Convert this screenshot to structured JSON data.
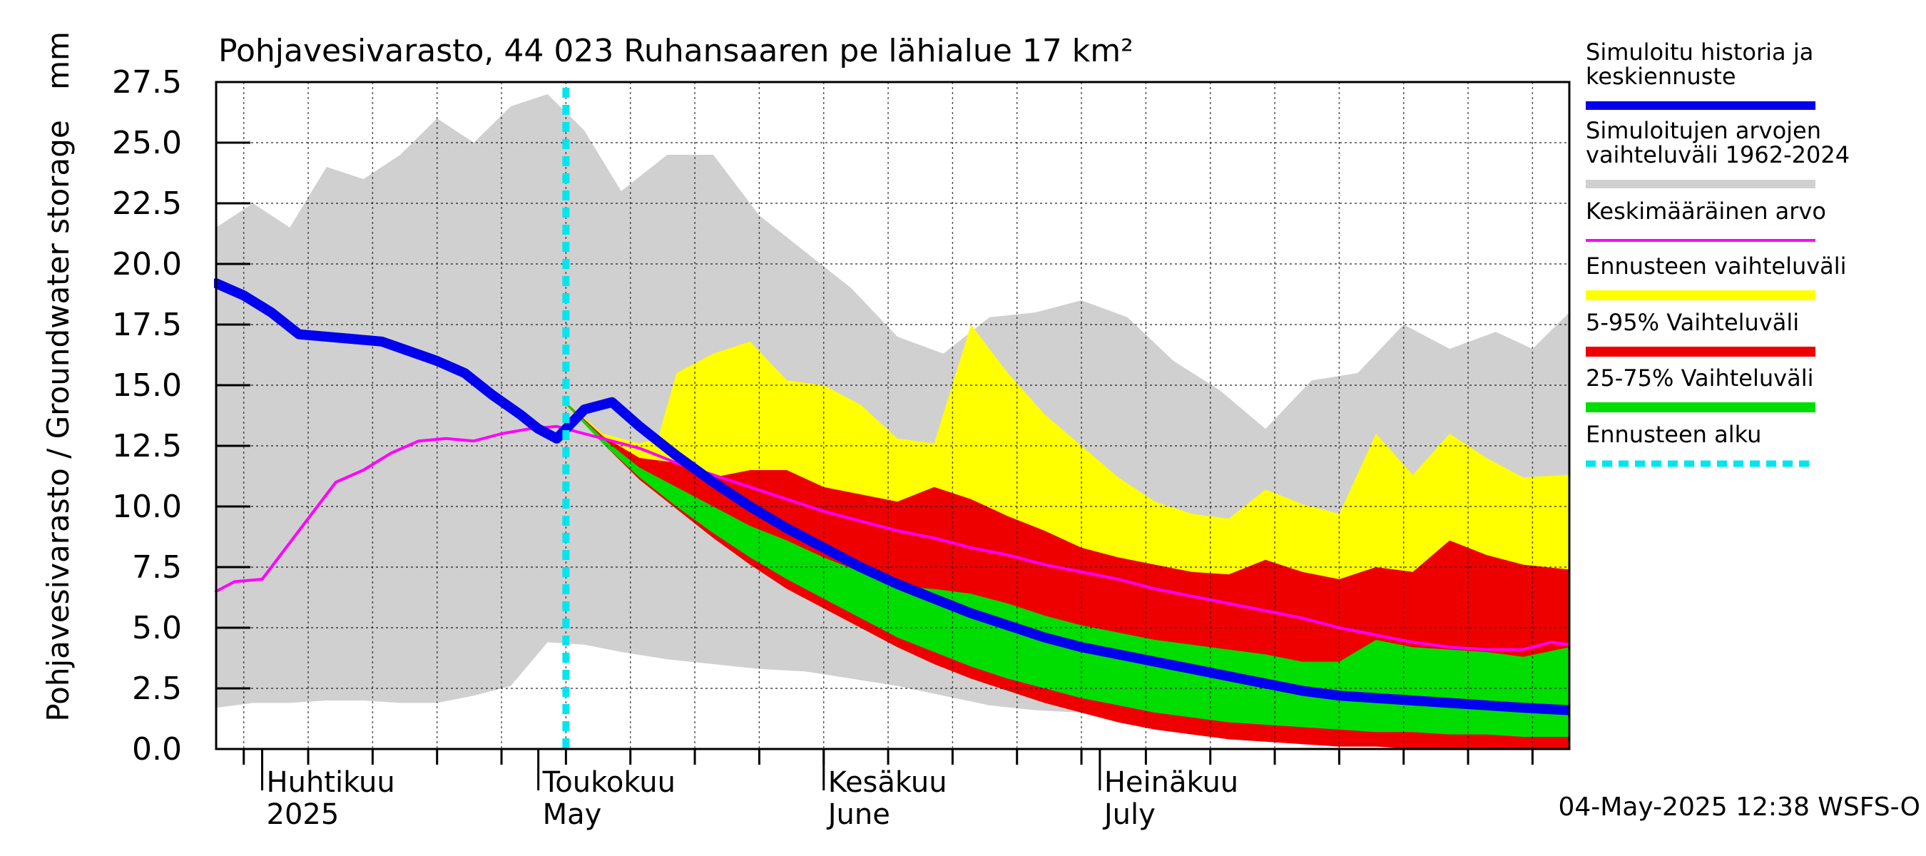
{
  "chart_data": {
    "type": "area",
    "title": "Pohjavesivarasto, 44 023 Ruhansaaren pe lähialue 17 km²",
    "unit": "mm",
    "ylabel": "Pohjavesivarasto / Groundwater storage",
    "ylim": [
      0,
      27.5
    ],
    "yticks": [
      "0.0",
      "2.5",
      "5.0",
      "7.5",
      "10.0",
      "12.5",
      "15.0",
      "17.5",
      "20.0",
      "22.5",
      "25.0",
      "27.5"
    ],
    "x_start": "2025-03-27",
    "x_end": "2025-08-21",
    "grid": true,
    "month_labels": [
      {
        "date": "2025-04-01",
        "fi": "Huhtikuu",
        "en": "2025"
      },
      {
        "date": "2025-05-01",
        "fi": "Toukokuu",
        "en": "May"
      },
      {
        "date": "2025-06-01",
        "fi": "Kesäkuu",
        "en": "June"
      },
      {
        "date": "2025-07-01",
        "fi": "Heinäkuu",
        "en": "July"
      }
    ],
    "forecast_start": "2025-05-04",
    "footer": "04-May-2025 12:38 WSFS-O",
    "legend": [
      {
        "label": "Simuloitu historia ja keskiennuste",
        "color": "#0000ee",
        "style": "thick"
      },
      {
        "label": "Simuloitujen arvojen vaihteluväli 1962-2024",
        "color": "#d0d0d0",
        "style": "band"
      },
      {
        "label": "Keskimääräinen arvo",
        "color": "#ff00ff",
        "style": "thin"
      },
      {
        "label": "Ennusteen vaihteluväli",
        "color": "#ffff00",
        "style": "band"
      },
      {
        "label": "5-95% Vaihteluväli",
        "color": "#ee0000",
        "style": "band"
      },
      {
        "label": "25-75% Vaihteluväli",
        "color": "#00dd00",
        "style": "band"
      },
      {
        "label": "Ennusteen alku",
        "color": "#00e5ee",
        "style": "dashed"
      }
    ],
    "series": [
      {
        "name": "Simuloitujen arvojen vaihteluväli 1962-2024",
        "kind": "band",
        "x": [
          "2025-03-27",
          "2025-03-31",
          "2025-04-04",
          "2025-04-08",
          "2025-04-12",
          "2025-04-16",
          "2025-04-20",
          "2025-04-24",
          "2025-04-28",
          "2025-05-02",
          "2025-05-06",
          "2025-05-10",
          "2025-05-15",
          "2025-05-20",
          "2025-05-25",
          "2025-05-30",
          "2025-06-04",
          "2025-06-09",
          "2025-06-14",
          "2025-06-19",
          "2025-06-24",
          "2025-06-29",
          "2025-07-04",
          "2025-07-09",
          "2025-07-14",
          "2025-07-19",
          "2025-07-24",
          "2025-07-29",
          "2025-08-03",
          "2025-08-08",
          "2025-08-13",
          "2025-08-17",
          "2025-08-21"
        ],
        "low": [
          1.7,
          1.9,
          1.9,
          2.0,
          2.0,
          1.9,
          1.9,
          2.2,
          2.6,
          4.4,
          4.3,
          4.0,
          3.7,
          3.5,
          3.3,
          3.2,
          2.9,
          2.6,
          2.2,
          1.8,
          1.6,
          1.5,
          1.4,
          1.2,
          1.1,
          0.9,
          0.8,
          0.6,
          0.5,
          0.4,
          0.3,
          0.2,
          0.1
        ],
        "high": [
          21.5,
          22.5,
          21.5,
          24.0,
          23.5,
          24.5,
          26.0,
          25.0,
          26.5,
          27.0,
          25.5,
          23.0,
          24.5,
          24.5,
          22.0,
          20.5,
          19.0,
          17.0,
          16.3,
          17.8,
          18.0,
          18.5,
          17.8,
          16.0,
          14.8,
          13.2,
          15.2,
          15.5,
          17.5,
          16.5,
          17.2,
          16.5,
          18.0
        ]
      },
      {
        "name": "Ennusteen vaihteluväli",
        "kind": "band",
        "x": [
          "2025-05-04",
          "2025-05-08",
          "2025-05-12",
          "2025-05-14",
          "2025-05-16",
          "2025-05-20",
          "2025-05-24",
          "2025-05-28",
          "2025-06-01",
          "2025-06-05",
          "2025-06-09",
          "2025-06-13",
          "2025-06-17",
          "2025-06-21",
          "2025-06-25",
          "2025-06-29",
          "2025-07-03",
          "2025-07-07",
          "2025-07-11",
          "2025-07-15",
          "2025-07-19",
          "2025-07-23",
          "2025-07-27",
          "2025-07-31",
          "2025-08-04",
          "2025-08-08",
          "2025-08-12",
          "2025-08-16",
          "2025-08-21"
        ],
        "low": [
          14.2,
          12.6,
          11.3,
          10.8,
          10.2,
          8.9,
          7.8,
          6.8,
          5.9,
          5.1,
          4.3,
          3.6,
          3.0,
          2.4,
          1.9,
          1.5,
          1.2,
          0.9,
          0.7,
          0.5,
          0.4,
          0.3,
          0.2,
          0.1,
          0.1,
          0.1,
          0.1,
          0.0,
          0.0
        ],
        "high": [
          14.3,
          13.0,
          12.6,
          12.8,
          15.5,
          16.3,
          16.8,
          15.2,
          15.0,
          14.2,
          12.8,
          12.6,
          17.5,
          15.5,
          13.8,
          12.5,
          11.2,
          10.2,
          9.7,
          9.5,
          10.7,
          10.1,
          9.7,
          13.0,
          11.3,
          13.0,
          12.0,
          11.2,
          11.3
        ]
      },
      {
        "name": "5-95% Vaihteluväli",
        "kind": "band",
        "x": [
          "2025-05-04",
          "2025-05-08",
          "2025-05-12",
          "2025-05-16",
          "2025-05-20",
          "2025-05-24",
          "2025-05-28",
          "2025-06-01",
          "2025-06-05",
          "2025-06-09",
          "2025-06-13",
          "2025-06-17",
          "2025-06-21",
          "2025-06-25",
          "2025-06-29",
          "2025-07-03",
          "2025-07-07",
          "2025-07-11",
          "2025-07-15",
          "2025-07-19",
          "2025-07-23",
          "2025-07-27",
          "2025-07-31",
          "2025-08-04",
          "2025-08-08",
          "2025-08-12",
          "2025-08-16",
          "2025-08-21"
        ],
        "low": [
          14.2,
          12.6,
          11.1,
          9.9,
          8.7,
          7.6,
          6.6,
          5.8,
          5.0,
          4.2,
          3.5,
          2.9,
          2.4,
          1.9,
          1.5,
          1.1,
          0.8,
          0.6,
          0.4,
          0.3,
          0.2,
          0.1,
          0.1,
          0.0,
          0.0,
          0.0,
          0.0,
          0.0
        ],
        "high": [
          14.3,
          12.9,
          12.0,
          11.8,
          11.2,
          11.5,
          11.5,
          10.8,
          10.5,
          10.2,
          10.8,
          10.3,
          9.6,
          9.0,
          8.3,
          7.9,
          7.6,
          7.3,
          7.2,
          7.8,
          7.3,
          7.0,
          7.5,
          7.3,
          8.6,
          8.0,
          7.6,
          7.4
        ]
      },
      {
        "name": "25-75% Vaihteluväli",
        "kind": "band",
        "x": [
          "2025-05-04",
          "2025-05-08",
          "2025-05-12",
          "2025-05-16",
          "2025-05-20",
          "2025-05-24",
          "2025-05-28",
          "2025-06-01",
          "2025-06-05",
          "2025-06-09",
          "2025-06-13",
          "2025-06-17",
          "2025-06-21",
          "2025-06-25",
          "2025-06-29",
          "2025-07-03",
          "2025-07-07",
          "2025-07-11",
          "2025-07-15",
          "2025-07-19",
          "2025-07-23",
          "2025-07-27",
          "2025-07-31",
          "2025-08-04",
          "2025-08-08",
          "2025-08-12",
          "2025-08-16",
          "2025-08-21"
        ],
        "low": [
          14.2,
          12.6,
          11.2,
          10.0,
          8.9,
          7.9,
          7.0,
          6.2,
          5.4,
          4.6,
          4.0,
          3.4,
          2.9,
          2.5,
          2.1,
          1.8,
          1.5,
          1.3,
          1.1,
          1.0,
          0.9,
          0.8,
          0.7,
          0.7,
          0.6,
          0.6,
          0.5,
          0.5
        ],
        "high": [
          14.3,
          12.8,
          11.6,
          10.8,
          10.0,
          9.2,
          8.6,
          7.9,
          7.3,
          6.7,
          6.6,
          6.4,
          6.0,
          5.5,
          5.1,
          4.8,
          4.5,
          4.3,
          4.1,
          3.9,
          3.6,
          3.6,
          4.5,
          4.2,
          4.1,
          4.0,
          3.8,
          4.2
        ]
      },
      {
        "name": "Keskimääräinen arvo",
        "kind": "line",
        "color": "#ff00ff",
        "x": [
          "2025-03-27",
          "2025-03-29",
          "2025-04-01",
          "2025-04-03",
          "2025-04-06",
          "2025-04-09",
          "2025-04-12",
          "2025-04-15",
          "2025-04-18",
          "2025-04-21",
          "2025-04-24",
          "2025-04-27",
          "2025-04-30",
          "2025-05-03",
          "2025-05-06",
          "2025-05-09",
          "2025-05-12",
          "2025-05-16",
          "2025-05-20",
          "2025-05-24",
          "2025-05-28",
          "2025-06-01",
          "2025-06-05",
          "2025-06-09",
          "2025-06-13",
          "2025-06-17",
          "2025-06-21",
          "2025-06-25",
          "2025-06-29",
          "2025-07-03",
          "2025-07-07",
          "2025-07-11",
          "2025-07-15",
          "2025-07-19",
          "2025-07-23",
          "2025-07-27",
          "2025-07-31",
          "2025-08-04",
          "2025-08-08",
          "2025-08-12",
          "2025-08-16",
          "2025-08-19",
          "2025-08-21"
        ],
        "values": [
          6.5,
          6.9,
          7.0,
          8.0,
          9.5,
          11.0,
          11.5,
          12.2,
          12.7,
          12.8,
          12.7,
          13.0,
          13.2,
          13.3,
          13.0,
          12.7,
          12.4,
          11.8,
          11.3,
          10.8,
          10.3,
          9.8,
          9.4,
          9.0,
          8.7,
          8.3,
          8.0,
          7.6,
          7.3,
          7.0,
          6.6,
          6.3,
          6.0,
          5.7,
          5.4,
          5.0,
          4.7,
          4.4,
          4.2,
          4.1,
          4.1,
          4.4,
          4.3
        ]
      },
      {
        "name": "Simuloitu historia ja keskiennuste",
        "kind": "line",
        "color": "#0000ee",
        "x": [
          "2025-03-27",
          "2025-03-30",
          "2025-04-02",
          "2025-04-05",
          "2025-04-08",
          "2025-04-11",
          "2025-04-14",
          "2025-04-17",
          "2025-04-20",
          "2025-04-23",
          "2025-04-26",
          "2025-04-29",
          "2025-05-01",
          "2025-05-03",
          "2025-05-06",
          "2025-05-09",
          "2025-05-12",
          "2025-05-16",
          "2025-05-20",
          "2025-05-24",
          "2025-05-28",
          "2025-06-01",
          "2025-06-05",
          "2025-06-09",
          "2025-06-13",
          "2025-06-17",
          "2025-06-21",
          "2025-06-25",
          "2025-06-29",
          "2025-07-03",
          "2025-07-07",
          "2025-07-11",
          "2025-07-15",
          "2025-07-19",
          "2025-07-23",
          "2025-07-27",
          "2025-07-31",
          "2025-08-04",
          "2025-08-08",
          "2025-08-12",
          "2025-08-16",
          "2025-08-21"
        ],
        "values": [
          19.2,
          18.7,
          18.0,
          17.1,
          17.0,
          16.9,
          16.8,
          16.4,
          16.0,
          15.5,
          14.6,
          13.8,
          13.2,
          12.8,
          14.0,
          14.3,
          13.3,
          12.1,
          11.0,
          10.0,
          9.1,
          8.3,
          7.5,
          6.8,
          6.2,
          5.6,
          5.1,
          4.6,
          4.2,
          3.9,
          3.6,
          3.3,
          3.0,
          2.7,
          2.4,
          2.2,
          2.1,
          2.0,
          1.9,
          1.8,
          1.7,
          1.6
        ]
      }
    ]
  }
}
